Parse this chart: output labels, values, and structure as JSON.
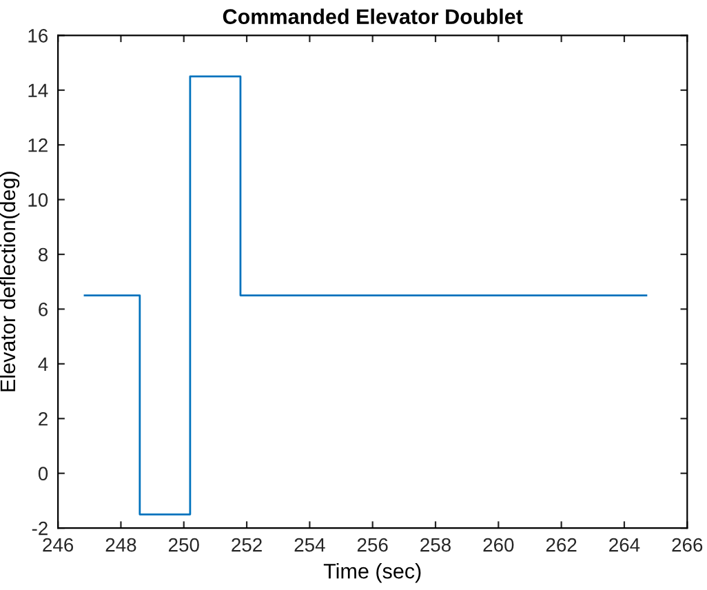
{
  "chart_data": {
    "type": "step",
    "title": "Commanded Elevator Doublet",
    "xlabel": "Time (sec)",
    "ylabel": "Elevator deflection(deg)",
    "x": [
      246.85,
      248.6,
      250.2,
      251.8,
      264.7
    ],
    "series": [
      {
        "color": "#0072bd",
        "values": [
          6.5,
          -1.5,
          14.5,
          6.5,
          6.5
        ]
      }
    ],
    "xlim": [
      246,
      266
    ],
    "xticks": [
      246,
      248,
      250,
      252,
      254,
      256,
      258,
      260,
      262,
      264,
      266
    ],
    "ylim": [
      -2,
      16
    ],
    "yticks": [
      -2,
      0,
      2,
      4,
      6,
      8,
      10,
      12,
      14,
      16
    ],
    "grid": false
  }
}
